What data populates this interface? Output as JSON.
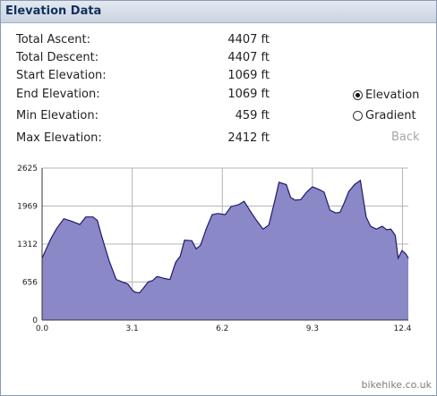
{
  "title": "Elevation Data",
  "stats": [
    {
      "label": "Total Ascent:",
      "value": "4407 ft"
    },
    {
      "label": "Total Descent:",
      "value": "4407 ft"
    },
    {
      "label": "Start Elevation:",
      "value": "1069 ft"
    },
    {
      "label": "End Elevation:",
      "value": "1069 ft"
    },
    {
      "label": "Min Elevation:",
      "value": "459 ft"
    },
    {
      "label": "Max Elevation:",
      "value": "2412 ft"
    }
  ],
  "options": [
    {
      "label": "Elevation",
      "checked": true
    },
    {
      "label": "Gradient",
      "checked": false
    }
  ],
  "back_label": "Back",
  "credit": "bikehike.co.uk",
  "colors": {
    "fill": "#8b88c8",
    "line": "#1f1a6e",
    "grid": "#b5b5b5"
  },
  "chart_data": {
    "type": "area",
    "title": "",
    "xlabel": "",
    "ylabel": "",
    "grid": true,
    "xlim": [
      0,
      12.6
    ],
    "ylim": [
      0,
      2625
    ],
    "xticks": [
      "0.0",
      "3.1",
      "6.2",
      "9.3",
      "12.4"
    ],
    "yticks": [
      "0",
      "656",
      "1312",
      "1969",
      "2625"
    ],
    "x": [
      0.0,
      0.3,
      0.5,
      0.75,
      1.0,
      1.3,
      1.5,
      1.75,
      1.9,
      2.05,
      2.3,
      2.55,
      2.75,
      2.95,
      3.1,
      3.2,
      3.35,
      3.5,
      3.65,
      3.8,
      3.95,
      4.05,
      4.2,
      4.4,
      4.6,
      4.75,
      4.9,
      5.15,
      5.3,
      5.45,
      5.65,
      5.85,
      6.05,
      6.3,
      6.5,
      6.75,
      6.95,
      7.15,
      7.35,
      7.6,
      7.8,
      8.0,
      8.15,
      8.4,
      8.55,
      8.7,
      8.9,
      9.1,
      9.3,
      9.5,
      9.7,
      9.9,
      10.1,
      10.25,
      10.4,
      10.55,
      10.75,
      10.95,
      11.15,
      11.3,
      11.5,
      11.7,
      11.85,
      12.0,
      12.15,
      12.25,
      12.38,
      12.5,
      12.6
    ],
    "y": [
      1069,
      1400,
      1580,
      1750,
      1710,
      1650,
      1780,
      1780,
      1720,
      1450,
      1030,
      700,
      660,
      620,
      520,
      480,
      470,
      560,
      660,
      680,
      750,
      740,
      720,
      700,
      1000,
      1100,
      1380,
      1370,
      1230,
      1290,
      1580,
      1820,
      1840,
      1820,
      1960,
      1990,
      2050,
      1890,
      1740,
      1570,
      1640,
      2050,
      2380,
      2340,
      2120,
      2070,
      2080,
      2210,
      2300,
      2260,
      2210,
      1900,
      1850,
      1860,
      2030,
      2220,
      2340,
      2412,
      1780,
      1620,
      1570,
      1620,
      1560,
      1570,
      1460,
      1069,
      1200,
      1150,
      1069
    ]
  }
}
